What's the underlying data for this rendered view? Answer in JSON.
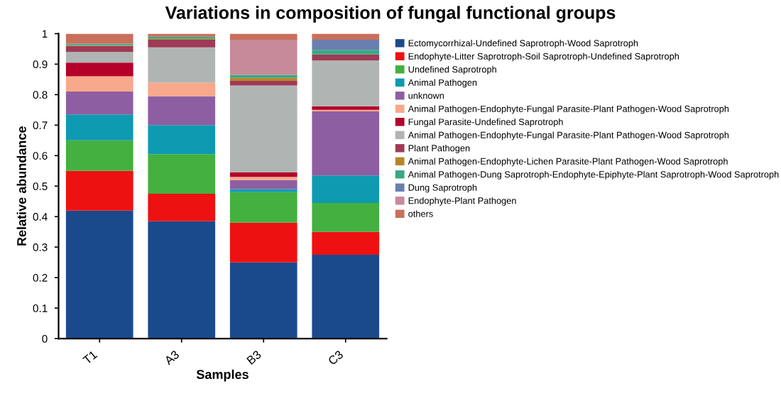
{
  "chart_data": {
    "type": "bar",
    "stacked": true,
    "title": "Variations in composition of fungal functional groups",
    "xlabel": "Samples",
    "ylabel": "Relative abundance",
    "categories": [
      "T1",
      "A3",
      "B3",
      "C3"
    ],
    "ylim": [
      0,
      1
    ],
    "yticks": [
      0,
      0.1,
      0.2,
      0.3,
      0.4,
      0.5,
      0.6,
      0.7,
      0.8,
      0.9,
      1
    ],
    "legend": "right",
    "grid": false,
    "series": [
      {
        "name": "Ectomycorrhizal-Undefined Saprotroph-Wood Saprotroph",
        "color": "#1b4a8c",
        "values": [
          0.42,
          0.385,
          0.25,
          0.275
        ]
      },
      {
        "name": "Endophyte-Litter Saprotroph-Soil Saprotroph-Undefined Saprotroph",
        "color": "#ee1111",
        "values": [
          0.13,
          0.09,
          0.13,
          0.075
        ]
      },
      {
        "name": "Undefined Saprotroph",
        "color": "#44b03f",
        "values": [
          0.1,
          0.13,
          0.1,
          0.095
        ]
      },
      {
        "name": "Animal Pathogen",
        "color": "#0e9ab0",
        "values": [
          0.085,
          0.095,
          0.01,
          0.09
        ]
      },
      {
        "name": "unknown",
        "color": "#8e5ea2",
        "values": [
          0.075,
          0.095,
          0.03,
          0.21
        ]
      },
      {
        "name": "Animal Pathogen-Endophyte-Fungal Parasite-Plant Pathogen-Wood Saprotroph",
        "color": "#f8a98b",
        "values": [
          0.05,
          0.045,
          0.01,
          0.005
        ]
      },
      {
        "name": "Fungal Parasite-Undefined Saprotroph",
        "color": "#b5002a",
        "values": [
          0.045,
          0,
          0.015,
          0.012
        ]
      },
      {
        "name": "Animal Pathogen-Endophyte-Fungal Parasite-Plant Pathogen-Wood Saprotroph",
        "color": "#b0b5b3",
        "values": [
          0.035,
          0.115,
          0.285,
          0.15
        ]
      },
      {
        "name": "Plant Pathogen",
        "color": "#9e3a55",
        "values": [
          0.02,
          0.025,
          0.015,
          0.02
        ]
      },
      {
        "name": "Animal Pathogen-Endophyte-Lichen Parasite-Plant Pathogen-Wood Saprotroph",
        "color": "#b8862a",
        "values": [
          0.002,
          0.003,
          0.01,
          0
        ]
      },
      {
        "name": "Animal Pathogen-Dung Saprotroph-Endophyte-Epiphyte-Plant Saprotroph-Wood Saprotroph",
        "color": "#3aa882",
        "values": [
          0.005,
          0.007,
          0.01,
          0.015
        ]
      },
      {
        "name": "Dung Saprotroph",
        "color": "#6a7fb0",
        "values": [
          0,
          0,
          0,
          0.033
        ]
      },
      {
        "name": "Endophyte-Plant Pathogen",
        "color": "#c78a9a",
        "values": [
          0,
          0,
          0.115,
          0
        ]
      },
      {
        "name": "others",
        "color": "#c8705c",
        "values": [
          0.033,
          0.01,
          0.02,
          0.02
        ]
      }
    ]
  }
}
